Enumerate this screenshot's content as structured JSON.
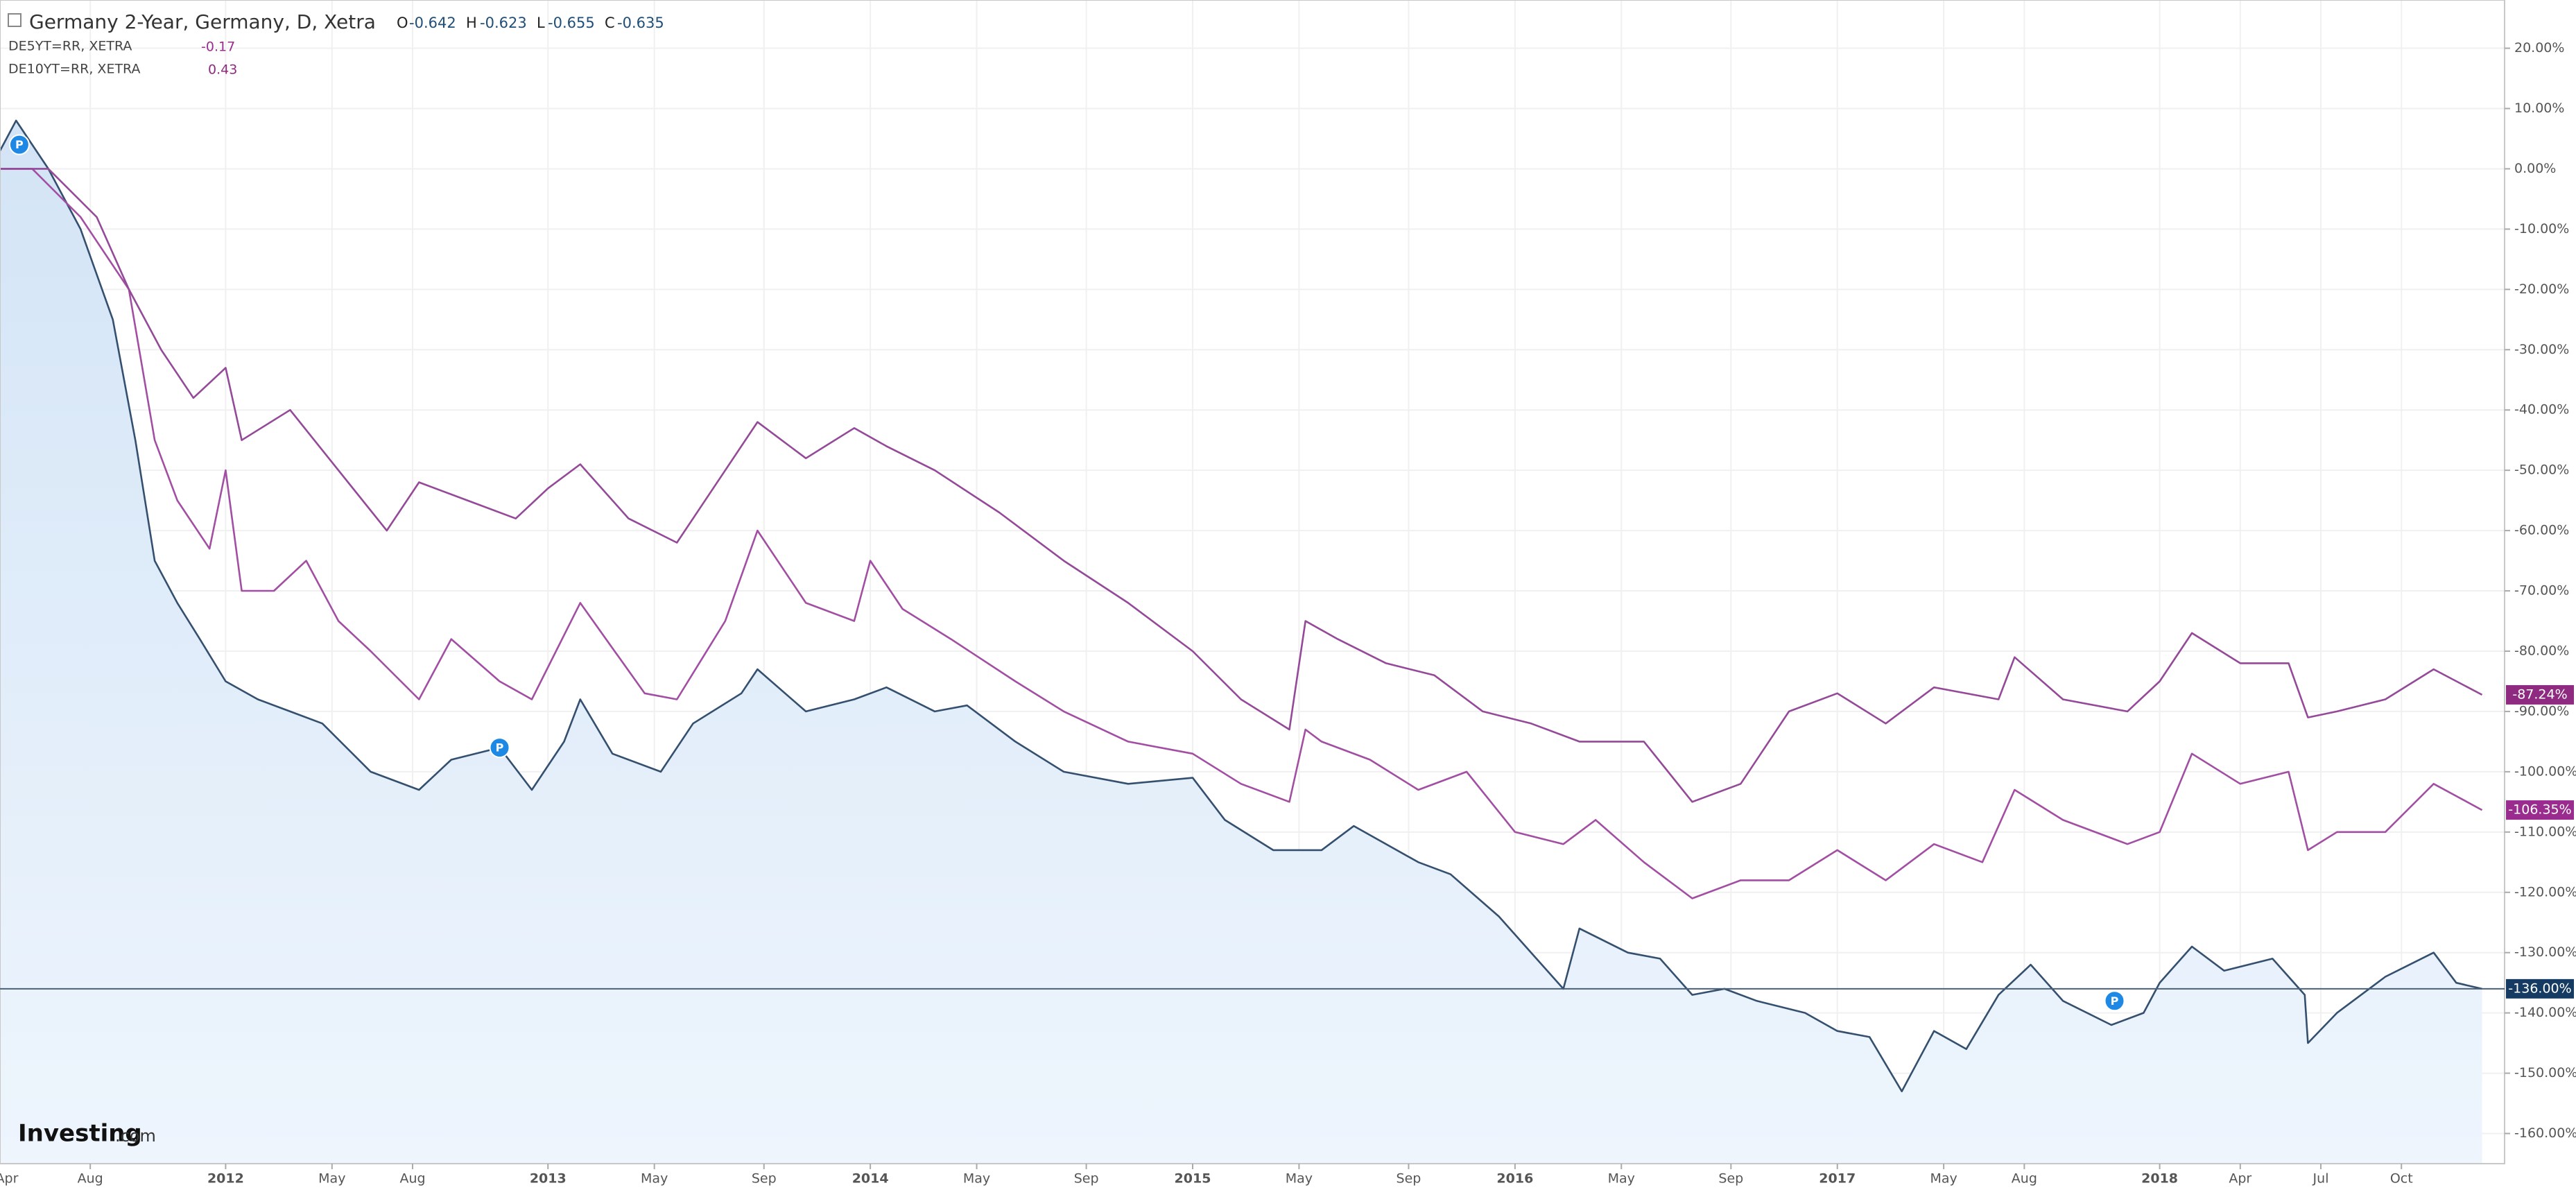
{
  "chart_data": {
    "type": "line",
    "header": {
      "o_label": "O",
      "o": "-0.642",
      "h_label": "H",
      "h": "-0.623",
      "l_label": "L",
      "l": "-0.655",
      "c_label": "C",
      "c": "-0.635"
    },
    "logo": {
      "brand": "Investing",
      "suffix": ".com"
    },
    "xlim": [
      2011.3,
      2019.07
    ],
    "xticks": [
      {
        "value": 2011.25,
        "label": "Apr"
      },
      {
        "value": 2011.58,
        "label": "Aug"
      },
      {
        "value": 2012,
        "label": "2012"
      },
      {
        "value": 2012.33,
        "label": "May"
      },
      {
        "value": 2012.58,
        "label": "Aug"
      },
      {
        "value": 2013,
        "label": "2013"
      },
      {
        "value": 2013.33,
        "label": "May"
      },
      {
        "value": 2013.67,
        "label": "Sep"
      },
      {
        "value": 2014,
        "label": "2014"
      },
      {
        "value": 2014.33,
        "label": "May"
      },
      {
        "value": 2014.67,
        "label": "Sep"
      },
      {
        "value": 2015,
        "label": "2015"
      },
      {
        "value": 2015.33,
        "label": "May"
      },
      {
        "value": 2015.67,
        "label": "Sep"
      },
      {
        "value": 2016,
        "label": "2016"
      },
      {
        "value": 2016.33,
        "label": "May"
      },
      {
        "value": 2016.67,
        "label": "Sep"
      },
      {
        "value": 2017,
        "label": "2017"
      },
      {
        "value": 2017.33,
        "label": "May"
      },
      {
        "value": 2017.58,
        "label": "Aug"
      },
      {
        "value": 2018,
        "label": "2018"
      },
      {
        "value": 2018.25,
        "label": "Apr"
      },
      {
        "value": 2018.5,
        "label": "Jul"
      },
      {
        "value": 2018.75,
        "label": "Oct"
      }
    ],
    "ylim": [
      -165,
      28
    ],
    "yticks": [
      {
        "value": 20,
        "label": "20.00%"
      },
      {
        "value": 10,
        "label": "10.00%"
      },
      {
        "value": 0,
        "label": "0.00%"
      },
      {
        "value": -10,
        "label": "-10.00%"
      },
      {
        "value": -20,
        "label": "-20.00%"
      },
      {
        "value": -30,
        "label": "-30.00%"
      },
      {
        "value": -40,
        "label": "-40.00%"
      },
      {
        "value": -50,
        "label": "-50.00%"
      },
      {
        "value": -60,
        "label": "-60.00%"
      },
      {
        "value": -70,
        "label": "-70.00%"
      },
      {
        "value": -80,
        "label": "-80.00%"
      },
      {
        "value": -90,
        "label": "-90.00%"
      },
      {
        "value": -100,
        "label": "-100.00%"
      },
      {
        "value": -110,
        "label": "-110.00%"
      },
      {
        "value": -120,
        "label": "-120.00%"
      },
      {
        "value": -130,
        "label": "-130.00%"
      },
      {
        "value": -140,
        "label": "-140.00%"
      },
      {
        "value": -150,
        "label": "-150.00%"
      },
      {
        "value": -160,
        "label": "-160.00%"
      }
    ],
    "grid": true,
    "price_line": -136,
    "markers": [
      {
        "label": "P",
        "x": 2011.36,
        "y": 4
      },
      {
        "label": "P",
        "x": 2012.85,
        "y": -96
      },
      {
        "label": "P",
        "x": 2017.86,
        "y": -138
      }
    ],
    "series": [
      {
        "name": "Germany 2-Year, Germany, D, Xetra",
        "color": "#34506e",
        "fill": "#dceaf8",
        "tag_color": "#163b63",
        "last_value_label": "-136.00%",
        "x": [
          2011.3,
          2011.35,
          2011.45,
          2011.55,
          2011.65,
          2011.72,
          2011.78,
          2011.85,
          2011.92,
          2012.0,
          2012.1,
          2012.2,
          2012.3,
          2012.45,
          2012.6,
          2012.7,
          2012.85,
          2012.95,
          2013.05,
          2013.1,
          2013.2,
          2013.35,
          2013.45,
          2013.6,
          2013.65,
          2013.8,
          2013.95,
          2014.05,
          2014.2,
          2014.3,
          2014.45,
          2014.6,
          2014.8,
          2015.0,
          2015.1,
          2015.25,
          2015.4,
          2015.5,
          2015.7,
          2015.8,
          2015.95,
          2016.05,
          2016.15,
          2016.2,
          2016.35,
          2016.45,
          2016.55,
          2016.65,
          2016.75,
          2016.9,
          2017.0,
          2017.1,
          2017.2,
          2017.3,
          2017.4,
          2017.5,
          2017.6,
          2017.7,
          2017.85,
          2017.95,
          2018.0,
          2018.1,
          2018.2,
          2018.35,
          2018.45,
          2018.46,
          2018.55,
          2018.7,
          2018.85,
          2018.92,
          2019.0
        ],
        "values": [
          3,
          8,
          0,
          -10,
          -25,
          -45,
          -65,
          -72,
          -78,
          -85,
          -88,
          -90,
          -92,
          -100,
          -103,
          -98,
          -96,
          -103,
          -95,
          -88,
          -97,
          -100,
          -92,
          -87,
          -83,
          -90,
          -88,
          -86,
          -90,
          -89,
          -95,
          -100,
          -102,
          -101,
          -108,
          -113,
          -113,
          -109,
          -115,
          -117,
          -124,
          -130,
          -136,
          -126,
          -130,
          -131,
          -137,
          -136,
          -138,
          -140,
          -143,
          -144,
          -153,
          -143,
          -146,
          -137,
          -132,
          -138,
          -142,
          -140,
          -135,
          -129,
          -133,
          -131,
          -137,
          -145,
          -140,
          -134,
          -130,
          -135,
          -136
        ]
      },
      {
        "name": "DE5YT=RR, XETRA",
        "quote": "-0.17",
        "color": "#a24fa3",
        "tag_color": "#9b2c8f",
        "last_value_label": "-106.35%",
        "x": [
          2011.3,
          2011.4,
          2011.55,
          2011.7,
          2011.78,
          2011.85,
          2011.95,
          2012.0,
          2012.05,
          2012.15,
          2012.25,
          2012.35,
          2012.45,
          2012.6,
          2012.7,
          2012.85,
          2012.95,
          2013.1,
          2013.3,
          2013.4,
          2013.55,
          2013.65,
          2013.8,
          2013.95,
          2014.0,
          2014.1,
          2014.25,
          2014.45,
          2014.6,
          2014.8,
          2015.0,
          2015.15,
          2015.3,
          2015.35,
          2015.4,
          2015.55,
          2015.7,
          2015.85,
          2016.0,
          2016.15,
          2016.25,
          2016.4,
          2016.55,
          2016.7,
          2016.85,
          2017.0,
          2017.15,
          2017.3,
          2017.45,
          2017.55,
          2017.7,
          2017.9,
          2018.0,
          2018.1,
          2018.25,
          2018.4,
          2018.46,
          2018.55,
          2018.7,
          2018.85,
          2019.0
        ],
        "values": [
          0,
          0,
          -8,
          -20,
          -45,
          -55,
          -63,
          -50,
          -70,
          -70,
          -65,
          -75,
          -80,
          -88,
          -78,
          -85,
          -88,
          -72,
          -87,
          -88,
          -75,
          -60,
          -72,
          -75,
          -65,
          -73,
          -78,
          -85,
          -90,
          -95,
          -97,
          -102,
          -105,
          -93,
          -95,
          -98,
          -103,
          -100,
          -110,
          -112,
          -108,
          -115,
          -121,
          -118,
          -118,
          -113,
          -118,
          -112,
          -115,
          -103,
          -108,
          -112,
          -110,
          -97,
          -102,
          -100,
          -113,
          -110,
          -110,
          -102,
          -106.35
        ]
      },
      {
        "name": "DE10YT=RR, XETRA",
        "quote": "0.43",
        "color": "#944a98",
        "tag_color": "#8e2a80",
        "last_value_label": "-87.24%",
        "x": [
          2011.3,
          2011.45,
          2011.6,
          2011.7,
          2011.8,
          2011.9,
          2012.0,
          2012.05,
          2012.2,
          2012.35,
          2012.5,
          2012.6,
          2012.75,
          2012.9,
          2013.0,
          2013.1,
          2013.25,
          2013.4,
          2013.55,
          2013.65,
          2013.8,
          2013.95,
          2014.05,
          2014.2,
          2014.4,
          2014.6,
          2014.8,
          2015.0,
          2015.15,
          2015.3,
          2015.35,
          2015.45,
          2015.6,
          2015.75,
          2015.9,
          2016.05,
          2016.2,
          2016.4,
          2016.55,
          2016.7,
          2016.85,
          2017.0,
          2017.15,
          2017.3,
          2017.5,
          2017.55,
          2017.7,
          2017.9,
          2018.0,
          2018.1,
          2018.25,
          2018.4,
          2018.46,
          2018.55,
          2018.7,
          2018.85,
          2019.0
        ],
        "values": [
          0,
          0,
          -8,
          -20,
          -30,
          -38,
          -33,
          -45,
          -40,
          -50,
          -60,
          -52,
          -55,
          -58,
          -53,
          -49,
          -58,
          -62,
          -50,
          -42,
          -48,
          -43,
          -46,
          -50,
          -57,
          -65,
          -72,
          -80,
          -88,
          -93,
          -75,
          -78,
          -82,
          -84,
          -90,
          -92,
          -95,
          -95,
          -105,
          -102,
          -90,
          -87,
          -92,
          -86,
          -88,
          -81,
          -88,
          -90,
          -85,
          -77,
          -82,
          -82,
          -91,
          -90,
          -88,
          -83,
          -87.24
        ]
      }
    ]
  }
}
